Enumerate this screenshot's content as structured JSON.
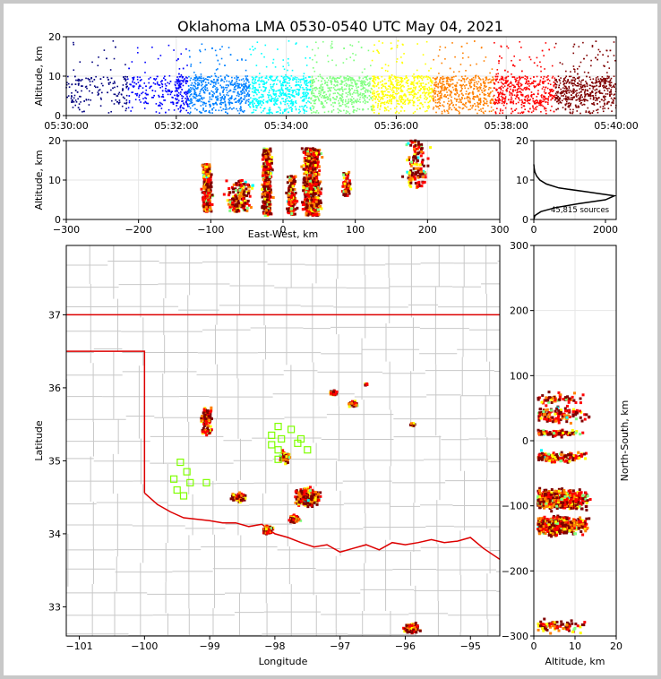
{
  "title": "Oklahoma LMA 0530-0540 UTC May 04, 2021",
  "colormap": [
    "#00007f",
    "#0000ff",
    "#0080ff",
    "#00ffff",
    "#80ff80",
    "#ffff00",
    "#ff8000",
    "#ff0000",
    "#7f0000"
  ],
  "state_border_color": "#dd0000",
  "county_line_color": "#c8c8c8",
  "station_marker_color": "#7fff00",
  "chart_data": [
    {
      "id": "time_height",
      "type": "scatter",
      "xlabel": "",
      "ylabel": "Altitude, km",
      "xlim": [
        "05:30:00",
        "05:40:00"
      ],
      "ylim": [
        0,
        20
      ],
      "xticks": [
        "05:30:00",
        "05:32:00",
        "05:34:00",
        "05:36:00",
        "05:38:00",
        "05:40:00"
      ],
      "yticks": [
        "0",
        "10",
        "20"
      ],
      "density_by_minute": [
        0.3,
        0.45,
        1,
        1,
        1,
        1,
        1,
        1,
        1,
        1
      ],
      "altitude_core_km": [
        3,
        10
      ],
      "color_encoding": "time"
    },
    {
      "id": "east_west_height",
      "type": "scatter",
      "xlabel": "East-West, km",
      "ylabel": "Altitude, km",
      "xlim": [
        -300,
        300
      ],
      "ylim": [
        0,
        20
      ],
      "xticks": [
        "−300",
        "−200",
        "−100",
        "0",
        "100",
        "200",
        "300"
      ],
      "yticks": [
        "0",
        "10",
        "20"
      ],
      "clusters_km": [
        {
          "x": -105,
          "w": 10,
          "alt": [
            2,
            14
          ],
          "n": 260
        },
        {
          "x": -60,
          "w": 30,
          "alt": [
            2,
            10
          ],
          "n": 160
        },
        {
          "x": -22,
          "w": 10,
          "alt": [
            1,
            18
          ],
          "n": 380
        },
        {
          "x": 12,
          "w": 10,
          "alt": [
            1,
            11
          ],
          "n": 160
        },
        {
          "x": 40,
          "w": 18,
          "alt": [
            1,
            18
          ],
          "n": 900
        },
        {
          "x": 88,
          "w": 12,
          "alt": [
            6,
            12
          ],
          "n": 60
        },
        {
          "x": 185,
          "w": 25,
          "alt": [
            8,
            20
          ],
          "n": 120
        }
      ]
    },
    {
      "id": "altitude_histogram",
      "type": "line",
      "xlim": [
        0,
        2300
      ],
      "ylim": [
        0,
        20
      ],
      "xticks": [
        "0",
        "2000"
      ],
      "yticks": [
        "0",
        "10",
        "20"
      ],
      "annotation": "45,815 sources",
      "profile": [
        [
          0,
          0
        ],
        [
          1,
          30
        ],
        [
          2,
          200
        ],
        [
          3,
          600
        ],
        [
          4,
          1250
        ],
        [
          5,
          2000
        ],
        [
          6,
          2250
        ],
        [
          7,
          1500
        ],
        [
          8,
          700
        ],
        [
          9,
          350
        ],
        [
          10,
          170
        ],
        [
          11,
          80
        ],
        [
          12,
          30
        ],
        [
          13,
          10
        ],
        [
          14,
          0
        ]
      ]
    },
    {
      "id": "plan_view",
      "type": "scatter",
      "xlabel": "Longitude",
      "ylabel": "Latitude",
      "xlim": [
        -101.2,
        -94.55
      ],
      "ylim": [
        32.6,
        37.95
      ],
      "xticks": [
        "−101",
        "−100",
        "−99",
        "−98",
        "−97",
        "−96",
        "−95"
      ],
      "yticks": [
        "33",
        "34",
        "35",
        "36",
        "37"
      ],
      "clusters_deg": [
        {
          "lon": -99.05,
          "lat": 35.6,
          "w": 0.12,
          "h": 0.2,
          "n": 120
        },
        {
          "lon": -99.05,
          "lat": 35.4,
          "w": 0.1,
          "h": 0.06,
          "n": 60
        },
        {
          "lon": -97.5,
          "lat": 34.5,
          "w": 0.25,
          "h": 0.16,
          "n": 700
        },
        {
          "lon": -97.7,
          "lat": 34.2,
          "w": 0.12,
          "h": 0.07,
          "n": 140
        },
        {
          "lon": -98.1,
          "lat": 34.05,
          "w": 0.1,
          "h": 0.08,
          "n": 120
        },
        {
          "lon": -98.55,
          "lat": 34.5,
          "w": 0.15,
          "h": 0.1,
          "n": 90
        },
        {
          "lon": -97.85,
          "lat": 35.05,
          "w": 0.1,
          "h": 0.12,
          "n": 80
        },
        {
          "lon": -97.1,
          "lat": 35.93,
          "w": 0.08,
          "h": 0.04,
          "n": 40
        },
        {
          "lon": -96.8,
          "lat": 35.78,
          "w": 0.1,
          "h": 0.06,
          "n": 60
        },
        {
          "lon": -96.6,
          "lat": 36.05,
          "w": 0.05,
          "h": 0.03,
          "n": 10
        },
        {
          "lon": -95.9,
          "lat": 32.7,
          "w": 0.2,
          "h": 0.1,
          "n": 80
        },
        {
          "lon": -95.9,
          "lat": 35.5,
          "w": 0.12,
          "h": 0.05,
          "n": 10
        }
      ],
      "stations": [
        [
          -97.95,
          35.47
        ],
        [
          -97.75,
          35.43
        ],
        [
          -98.05,
          35.35
        ],
        [
          -97.9,
          35.3
        ],
        [
          -97.6,
          35.3
        ],
        [
          -98.05,
          35.22
        ],
        [
          -97.65,
          35.24
        ],
        [
          -97.95,
          35.15
        ],
        [
          -97.5,
          35.15
        ],
        [
          -97.95,
          35.02
        ],
        [
          -99.45,
          34.98
        ],
        [
          -99.35,
          34.85
        ],
        [
          -99.55,
          34.75
        ],
        [
          -99.3,
          34.7
        ],
        [
          -99.05,
          34.7
        ],
        [
          -99.5,
          34.6
        ],
        [
          -99.4,
          34.52
        ]
      ]
    },
    {
      "id": "north_south_height",
      "type": "scatter",
      "xlabel": "Altitude, km",
      "ylabel": "North-South, km",
      "xlim": [
        0,
        20
      ],
      "ylim": [
        -300,
        300
      ],
      "xticks": [
        "0",
        "10",
        "20"
      ],
      "yticks": [
        "−300",
        "−200",
        "−100",
        "0",
        "100",
        "200",
        "300"
      ],
      "clusters_km": [
        {
          "y": 65,
          "h": 15,
          "n": 60
        },
        {
          "y": 40,
          "h": 20,
          "n": 120
        },
        {
          "y": 12,
          "h": 8,
          "n": 100
        },
        {
          "y": -25,
          "h": 12,
          "n": 160
        },
        {
          "y": -90,
          "h": 22,
          "n": 800
        },
        {
          "y": -130,
          "h": 22,
          "n": 520
        },
        {
          "y": -285,
          "h": 15,
          "n": 80
        }
      ]
    }
  ]
}
